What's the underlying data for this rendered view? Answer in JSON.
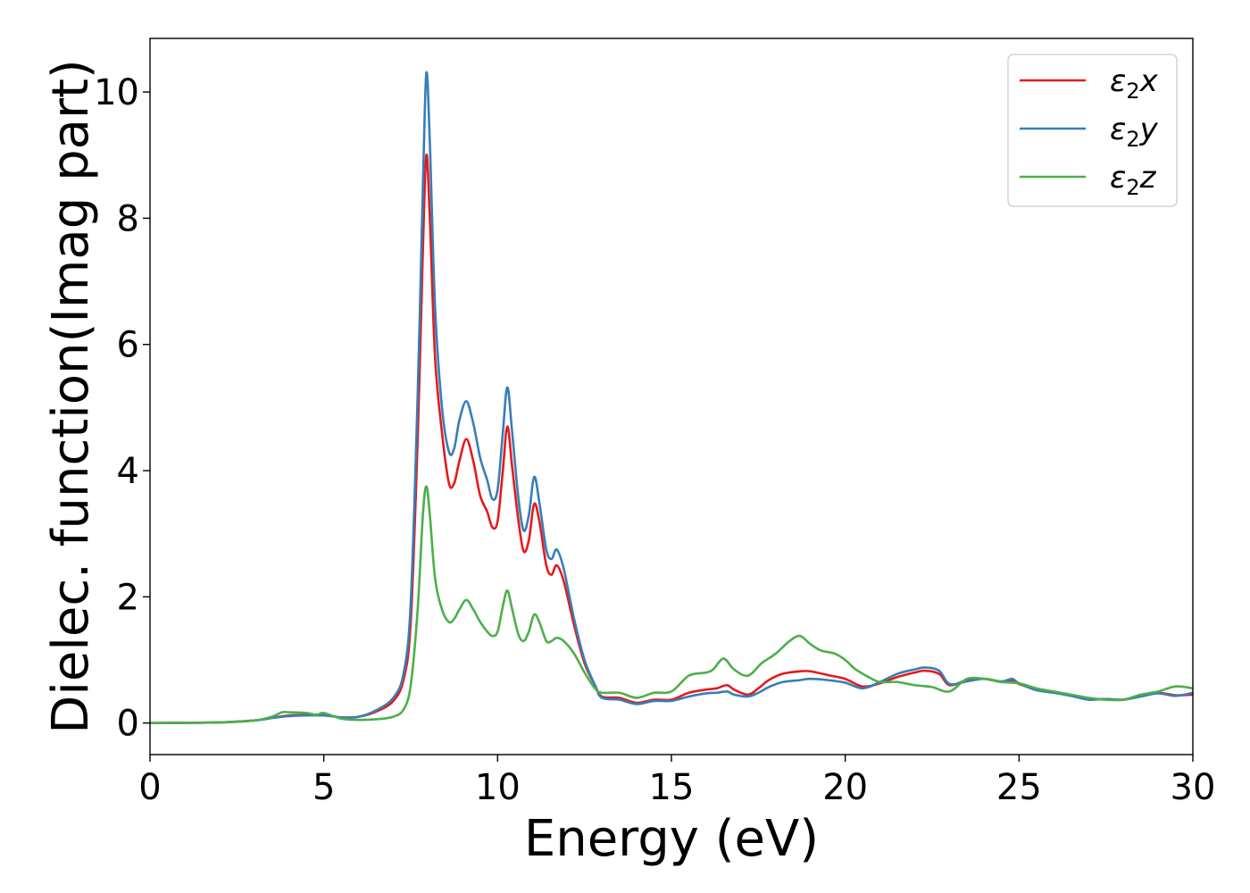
{
  "chart_data": {
    "type": "line",
    "title": "",
    "xlabel": "Energy (eV)",
    "ylabel": "Dielec. function(Imag part)",
    "xlim": [
      0,
      30
    ],
    "ylim": [
      -0.5,
      10.85
    ],
    "xticks": [
      0,
      5,
      10,
      15,
      20,
      25,
      30
    ],
    "yticks": [
      0,
      2,
      4,
      6,
      8,
      10
    ],
    "grid": false,
    "legend_position": "top-right",
    "series": [
      {
        "name": "ε2x",
        "legend_base": "ε",
        "legend_sub": "2",
        "legend_tail": "x",
        "color": "#e41a1c",
        "points": [
          [
            0,
            0
          ],
          [
            2,
            0.01
          ],
          [
            3,
            0.04
          ],
          [
            3.5,
            0.08
          ],
          [
            4,
            0.12
          ],
          [
            4.5,
            0.13
          ],
          [
            5,
            0.13
          ],
          [
            5.5,
            0.09
          ],
          [
            6,
            0.1
          ],
          [
            6.5,
            0.18
          ],
          [
            7,
            0.35
          ],
          [
            7.3,
            0.7
          ],
          [
            7.5,
            1.6
          ],
          [
            7.7,
            4.5
          ],
          [
            7.85,
            7.5
          ],
          [
            7.95,
            9.0
          ],
          [
            8.05,
            8.0
          ],
          [
            8.2,
            5.8
          ],
          [
            8.4,
            4.6
          ],
          [
            8.6,
            3.8
          ],
          [
            8.75,
            3.8
          ],
          [
            8.9,
            4.15
          ],
          [
            9.1,
            4.5
          ],
          [
            9.3,
            4.15
          ],
          [
            9.5,
            3.6
          ],
          [
            9.7,
            3.35
          ],
          [
            9.85,
            3.1
          ],
          [
            10,
            3.2
          ],
          [
            10.15,
            4.0
          ],
          [
            10.28,
            4.7
          ],
          [
            10.42,
            4.05
          ],
          [
            10.6,
            3.2
          ],
          [
            10.75,
            2.72
          ],
          [
            10.9,
            2.9
          ],
          [
            11.05,
            3.47
          ],
          [
            11.2,
            3.2
          ],
          [
            11.4,
            2.5
          ],
          [
            11.55,
            2.35
          ],
          [
            11.7,
            2.5
          ],
          [
            11.9,
            2.25
          ],
          [
            12.2,
            1.55
          ],
          [
            12.5,
            0.95
          ],
          [
            12.8,
            0.6
          ],
          [
            13,
            0.42
          ],
          [
            13.5,
            0.4
          ],
          [
            14,
            0.32
          ],
          [
            14.5,
            0.37
          ],
          [
            15,
            0.37
          ],
          [
            15.5,
            0.48
          ],
          [
            16,
            0.53
          ],
          [
            16.3,
            0.55
          ],
          [
            16.6,
            0.6
          ],
          [
            16.8,
            0.53
          ],
          [
            17.2,
            0.45
          ],
          [
            17.5,
            0.55
          ],
          [
            17.8,
            0.68
          ],
          [
            18.2,
            0.78
          ],
          [
            18.7,
            0.82
          ],
          [
            19,
            0.82
          ],
          [
            19.5,
            0.76
          ],
          [
            20,
            0.7
          ],
          [
            20.5,
            0.58
          ],
          [
            21,
            0.63
          ],
          [
            21.5,
            0.73
          ],
          [
            22,
            0.8
          ],
          [
            22.3,
            0.83
          ],
          [
            22.7,
            0.78
          ],
          [
            23,
            0.6
          ],
          [
            23.5,
            0.68
          ],
          [
            24,
            0.7
          ],
          [
            24.5,
            0.65
          ],
          [
            24.8,
            0.68
          ],
          [
            25,
            0.62
          ],
          [
            25.5,
            0.53
          ],
          [
            26,
            0.48
          ],
          [
            26.5,
            0.44
          ],
          [
            27,
            0.38
          ],
          [
            27.5,
            0.38
          ],
          [
            28,
            0.37
          ],
          [
            28.5,
            0.43
          ],
          [
            29,
            0.48
          ],
          [
            29.5,
            0.44
          ],
          [
            30,
            0.45
          ]
        ]
      },
      {
        "name": "ε2y",
        "legend_base": "ε",
        "legend_sub": "2",
        "legend_tail": "y",
        "color": "#377eb8",
        "points": [
          [
            0,
            0
          ],
          [
            2,
            0.01
          ],
          [
            3,
            0.04
          ],
          [
            3.5,
            0.08
          ],
          [
            4,
            0.11
          ],
          [
            4.5,
            0.12
          ],
          [
            5,
            0.12
          ],
          [
            5.5,
            0.09
          ],
          [
            6,
            0.1
          ],
          [
            6.5,
            0.2
          ],
          [
            7,
            0.4
          ],
          [
            7.3,
            0.8
          ],
          [
            7.5,
            1.9
          ],
          [
            7.7,
            5.2
          ],
          [
            7.85,
            8.5
          ],
          [
            7.95,
            10.3
          ],
          [
            8.05,
            9.2
          ],
          [
            8.2,
            6.6
          ],
          [
            8.4,
            5.0
          ],
          [
            8.6,
            4.3
          ],
          [
            8.75,
            4.35
          ],
          [
            8.9,
            4.8
          ],
          [
            9.1,
            5.1
          ],
          [
            9.3,
            4.75
          ],
          [
            9.5,
            4.2
          ],
          [
            9.7,
            3.85
          ],
          [
            9.85,
            3.55
          ],
          [
            10,
            3.7
          ],
          [
            10.15,
            4.6
          ],
          [
            10.28,
            5.32
          ],
          [
            10.42,
            4.6
          ],
          [
            10.6,
            3.55
          ],
          [
            10.75,
            3.05
          ],
          [
            10.9,
            3.3
          ],
          [
            11.05,
            3.9
          ],
          [
            11.2,
            3.5
          ],
          [
            11.4,
            2.75
          ],
          [
            11.55,
            2.6
          ],
          [
            11.7,
            2.75
          ],
          [
            11.9,
            2.45
          ],
          [
            12.2,
            1.65
          ],
          [
            12.5,
            1.0
          ],
          [
            12.8,
            0.6
          ],
          [
            13,
            0.4
          ],
          [
            13.5,
            0.37
          ],
          [
            14,
            0.3
          ],
          [
            14.5,
            0.35
          ],
          [
            15,
            0.35
          ],
          [
            15.5,
            0.42
          ],
          [
            16,
            0.47
          ],
          [
            16.3,
            0.48
          ],
          [
            16.6,
            0.5
          ],
          [
            16.8,
            0.45
          ],
          [
            17.2,
            0.42
          ],
          [
            17.5,
            0.48
          ],
          [
            17.8,
            0.57
          ],
          [
            18.2,
            0.65
          ],
          [
            18.7,
            0.68
          ],
          [
            19,
            0.7
          ],
          [
            19.5,
            0.68
          ],
          [
            20,
            0.64
          ],
          [
            20.5,
            0.55
          ],
          [
            21,
            0.65
          ],
          [
            21.5,
            0.78
          ],
          [
            22,
            0.85
          ],
          [
            22.3,
            0.88
          ],
          [
            22.7,
            0.83
          ],
          [
            23,
            0.62
          ],
          [
            23.5,
            0.66
          ],
          [
            24,
            0.7
          ],
          [
            24.5,
            0.66
          ],
          [
            24.8,
            0.7
          ],
          [
            25,
            0.63
          ],
          [
            25.5,
            0.52
          ],
          [
            26,
            0.48
          ],
          [
            26.5,
            0.43
          ],
          [
            27,
            0.37
          ],
          [
            27.5,
            0.38
          ],
          [
            28,
            0.37
          ],
          [
            28.5,
            0.42
          ],
          [
            29,
            0.47
          ],
          [
            29.5,
            0.43
          ],
          [
            30,
            0.48
          ]
        ]
      },
      {
        "name": "ε2z",
        "legend_base": "ε",
        "legend_sub": "2",
        "legend_tail": "z",
        "color": "#4daf4a",
        "points": [
          [
            0,
            0
          ],
          [
            2,
            0.01
          ],
          [
            3,
            0.04
          ],
          [
            3.5,
            0.1
          ],
          [
            3.8,
            0.17
          ],
          [
            4,
            0.17
          ],
          [
            4.5,
            0.16
          ],
          [
            4.8,
            0.13
          ],
          [
            5,
            0.16
          ],
          [
            5.5,
            0.07
          ],
          [
            6,
            0.05
          ],
          [
            6.5,
            0.06
          ],
          [
            7,
            0.1
          ],
          [
            7.3,
            0.22
          ],
          [
            7.5,
            0.6
          ],
          [
            7.7,
            1.8
          ],
          [
            7.85,
            3.3
          ],
          [
            7.95,
            3.75
          ],
          [
            8.05,
            3.3
          ],
          [
            8.2,
            2.3
          ],
          [
            8.4,
            1.8
          ],
          [
            8.6,
            1.6
          ],
          [
            8.75,
            1.65
          ],
          [
            8.9,
            1.8
          ],
          [
            9.1,
            1.95
          ],
          [
            9.3,
            1.8
          ],
          [
            9.5,
            1.6
          ],
          [
            9.7,
            1.45
          ],
          [
            9.85,
            1.38
          ],
          [
            10,
            1.45
          ],
          [
            10.15,
            1.85
          ],
          [
            10.28,
            2.1
          ],
          [
            10.42,
            1.8
          ],
          [
            10.6,
            1.4
          ],
          [
            10.75,
            1.3
          ],
          [
            10.9,
            1.45
          ],
          [
            11.05,
            1.72
          ],
          [
            11.2,
            1.6
          ],
          [
            11.4,
            1.3
          ],
          [
            11.55,
            1.3
          ],
          [
            11.7,
            1.35
          ],
          [
            11.9,
            1.3
          ],
          [
            12.2,
            1.1
          ],
          [
            12.5,
            0.8
          ],
          [
            12.8,
            0.55
          ],
          [
            13,
            0.48
          ],
          [
            13.5,
            0.48
          ],
          [
            14,
            0.4
          ],
          [
            14.5,
            0.48
          ],
          [
            15,
            0.5
          ],
          [
            15.5,
            0.75
          ],
          [
            16,
            0.8
          ],
          [
            16.2,
            0.85
          ],
          [
            16.5,
            1.02
          ],
          [
            16.8,
            0.85
          ],
          [
            17.2,
            0.75
          ],
          [
            17.6,
            0.95
          ],
          [
            18,
            1.1
          ],
          [
            18.4,
            1.3
          ],
          [
            18.7,
            1.38
          ],
          [
            19,
            1.25
          ],
          [
            19.3,
            1.15
          ],
          [
            19.7,
            1.1
          ],
          [
            20,
            1.0
          ],
          [
            20.3,
            0.85
          ],
          [
            20.7,
            0.72
          ],
          [
            21,
            0.65
          ],
          [
            21.5,
            0.65
          ],
          [
            22,
            0.6
          ],
          [
            22.5,
            0.57
          ],
          [
            23,
            0.5
          ],
          [
            23.5,
            0.7
          ],
          [
            24,
            0.7
          ],
          [
            24.5,
            0.65
          ],
          [
            25,
            0.63
          ],
          [
            25.5,
            0.55
          ],
          [
            26,
            0.5
          ],
          [
            26.5,
            0.45
          ],
          [
            27,
            0.4
          ],
          [
            27.5,
            0.37
          ],
          [
            28,
            0.37
          ],
          [
            28.5,
            0.45
          ],
          [
            29,
            0.5
          ],
          [
            29.5,
            0.58
          ],
          [
            30,
            0.55
          ]
        ]
      }
    ]
  }
}
